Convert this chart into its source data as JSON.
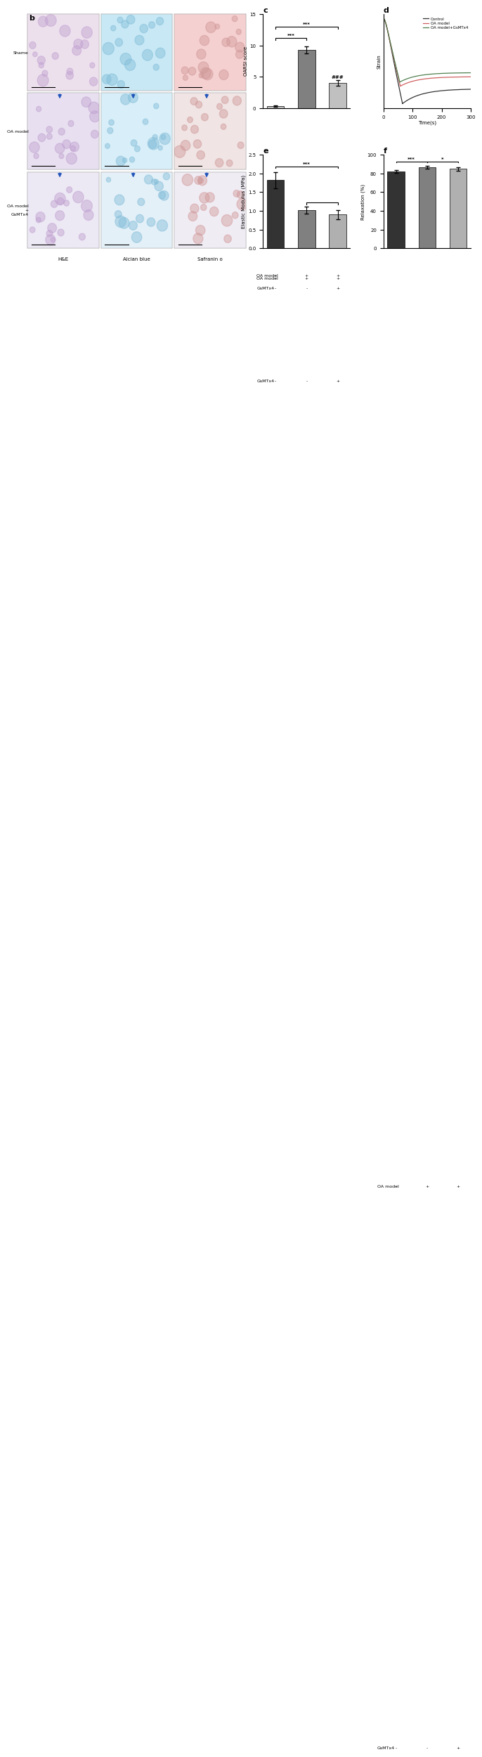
{
  "panel_c": {
    "title": "c",
    "ylabel": "OARSI score",
    "values": [
      0.3,
      9.3,
      4.0
    ],
    "errors": [
      0.15,
      0.6,
      0.5
    ],
    "colors": [
      "#c0c0c0",
      "#808080",
      "#c0c0c0"
    ],
    "ylim": [
      0,
      15
    ],
    "yticks": [
      0,
      5,
      10,
      15
    ],
    "oa_model_labels": [
      "-",
      "+",
      "+"
    ],
    "gsmtx4_labels": [
      "-",
      "-",
      "+"
    ]
  },
  "panel_d": {
    "title": "d",
    "ylabel": "Strain",
    "xlabel": "Time(s)",
    "xlim": [
      0,
      300
    ],
    "xticks": [
      0,
      100,
      200,
      300
    ],
    "legend": [
      "Control",
      "OA model",
      "OA model+GsMTx4"
    ],
    "colors": [
      "#333333",
      "#d06060",
      "#508050"
    ]
  },
  "panel_e": {
    "title": "e",
    "ylabel": "Elastic Modulus (MPa)",
    "values": [
      1.82,
      1.02,
      0.9
    ],
    "errors": [
      0.22,
      0.1,
      0.13
    ],
    "colors": [
      "#333333",
      "#808080",
      "#b0b0b0"
    ],
    "ylim": [
      0,
      2.5
    ],
    "yticks": [
      0.0,
      0.5,
      1.0,
      1.5,
      2.0,
      2.5
    ],
    "oa_model_labels": [
      "-",
      "+",
      "+"
    ],
    "gsmtx4_labels": [
      "-",
      "-",
      "+"
    ]
  },
  "panel_f": {
    "title": "f",
    "ylabel": "Relaxation (%)",
    "values": [
      82,
      87,
      85
    ],
    "errors": [
      1.5,
      1.5,
      2.0
    ],
    "colors": [
      "#333333",
      "#808080",
      "#b0b0b0"
    ],
    "ylim": [
      0,
      100
    ],
    "yticks": [
      0,
      20,
      40,
      60,
      80,
      100
    ],
    "oa_model_labels": [
      "-",
      "+",
      "+"
    ],
    "gsmtx4_labels": [
      "-",
      "-",
      "+"
    ]
  },
  "panel_b": {
    "title": "b",
    "rows": [
      "Shame",
      "OA model",
      "OA model\n+\nGsMTx4"
    ],
    "cols": [
      "H&E",
      "Alcian blue",
      "Safranin o"
    ],
    "cell_colors": [
      [
        "#ede0ed",
        "#c8e8f5",
        "#f5d0d0"
      ],
      [
        "#e8e0f0",
        "#d8eef8",
        "#f0e4e4"
      ],
      [
        "#ece8f4",
        "#e4f0f8",
        "#f0ecf4"
      ]
    ]
  }
}
